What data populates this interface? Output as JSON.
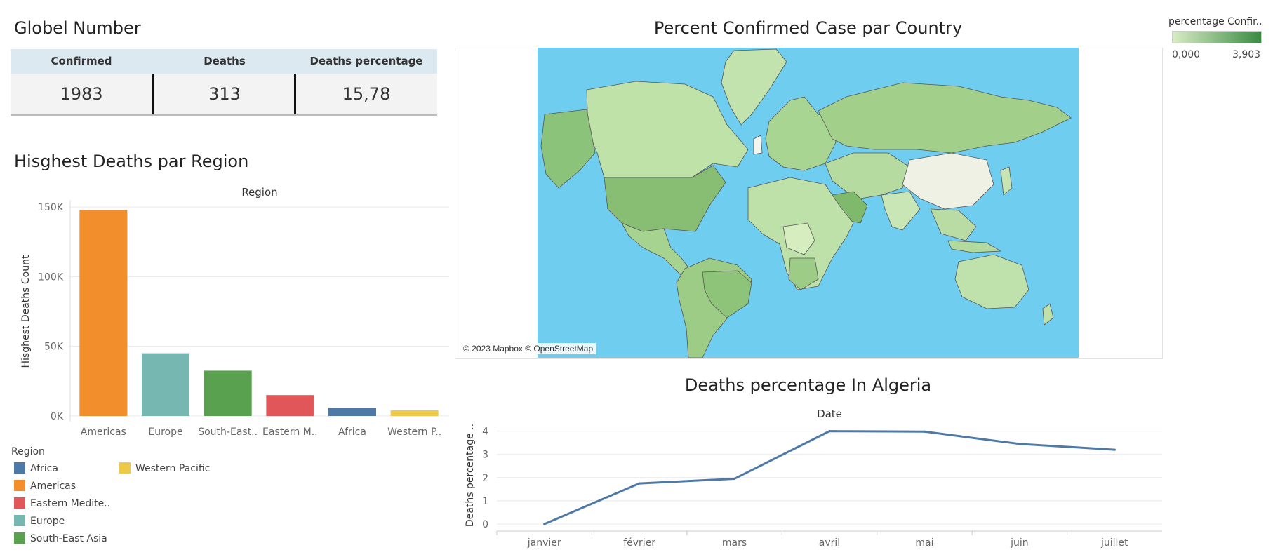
{
  "kpi": {
    "title": "Globel Number",
    "headers": [
      "Confirmed",
      "Deaths",
      "Deaths percentage"
    ],
    "values": [
      "1983",
      "313",
      "15,78"
    ]
  },
  "bar_section": {
    "title": "Hisghest Deaths par Region"
  },
  "map_section": {
    "title": "Percent Confirmed Case par Country",
    "attribution": "© 2023 Mapbox © OpenStreetMap",
    "legend_title": "percentage Confir..",
    "legend_min": "0,000",
    "legend_max": "3,903",
    "colors": {
      "ocean": "#6fcdf0",
      "low": "#d8ecc4",
      "high": "#3a8a43"
    }
  },
  "line_section": {
    "title": "Deaths percentage In Algeria"
  },
  "legend": {
    "title": "Region",
    "items": [
      {
        "label": "Africa",
        "color": "#4e79a7"
      },
      {
        "label": "Americas",
        "color": "#f28e2b"
      },
      {
        "label": "Eastern Medite..",
        "color": "#e15759"
      },
      {
        "label": "Europe",
        "color": "#76b7b2"
      },
      {
        "label": "South-East Asia",
        "color": "#59a14f"
      },
      {
        "label": "Western Pacific",
        "color": "#edc948"
      }
    ]
  },
  "chart_data": [
    {
      "type": "bar",
      "title": "Hisghest Deaths par Region",
      "xlabel": "Region",
      "ylabel": "Hisghest Deaths Count",
      "categories": [
        "Americas",
        "Europe",
        "South-East..",
        "Eastern M..",
        "Africa",
        "Western P.."
      ],
      "values": [
        148000,
        45000,
        32500,
        15000,
        6000,
        4000
      ],
      "colors": [
        "#f28e2b",
        "#76b7b2",
        "#59a14f",
        "#e15759",
        "#4e79a7",
        "#edc948"
      ],
      "ylim": [
        0,
        150000
      ],
      "yticks": [
        0,
        50000,
        100000,
        150000
      ],
      "ytick_labels": [
        "0K",
        "50K",
        "100K",
        "150K"
      ],
      "grid": true
    },
    {
      "type": "line",
      "title": "Deaths percentage In Algeria",
      "xlabel": "Date",
      "ylabel": "Deaths percentage ..",
      "categories": [
        "janvier",
        "février",
        "mars",
        "avril",
        "mai",
        "juin",
        "juillet"
      ],
      "series": [
        {
          "values": [
            0,
            1.75,
            1.95,
            4.0,
            3.98,
            3.45,
            3.2
          ],
          "color": "#4e79a7"
        }
      ],
      "ylim": [
        0,
        4.2
      ],
      "yticks": [
        0,
        1,
        2,
        3,
        4
      ],
      "ytick_labels": [
        "0",
        "1",
        "2",
        "3",
        "4"
      ],
      "grid": true
    }
  ]
}
